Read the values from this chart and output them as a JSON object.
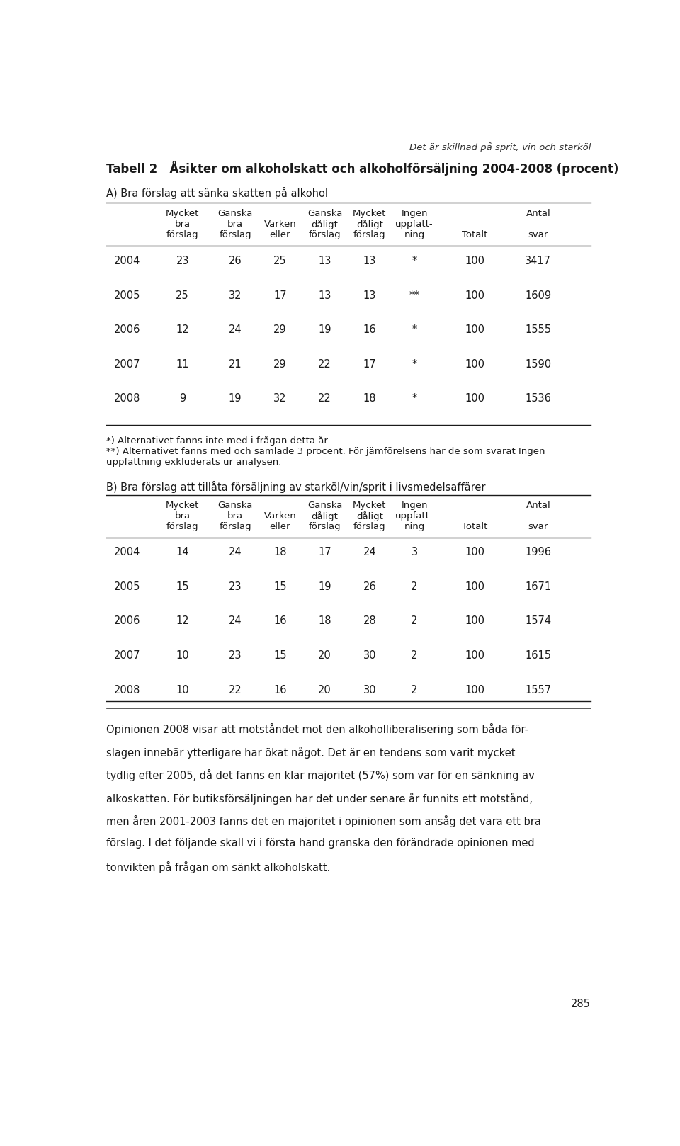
{
  "page_header": "Det är skillnad på sprit, vin och starköl",
  "main_title": "Tabell 2   Åsikter om alkoholskatt och alkoholförsäljning 2004-2008 (procent)",
  "section_a_title": "A) Bra förslag att sänka skatten på alkohol",
  "section_b_title": "B) Bra förslag att tillåta försäljning av starköl/vin/sprit i livsmedelsaffärer",
  "col_headers_line1": [
    "Mycket",
    "Ganska",
    "",
    "Ganska",
    "Mycket",
    "Ingen",
    "",
    "Antal"
  ],
  "col_headers_line2": [
    "bra",
    "bra",
    "Varken",
    "dåligt",
    "dåligt",
    "uppfatt-",
    "",
    ""
  ],
  "col_headers_line3": [
    "förslag",
    "förslag",
    "eller",
    "förslag",
    "förslag",
    "ning",
    "Totalt",
    "svar"
  ],
  "table_a_rows": [
    [
      "2004",
      "23",
      "26",
      "25",
      "13",
      "13",
      "*",
      "100",
      "3417"
    ],
    [
      "2005",
      "25",
      "32",
      "17",
      "13",
      "13",
      "**",
      "100",
      "1609"
    ],
    [
      "2006",
      "12",
      "24",
      "29",
      "19",
      "16",
      "*",
      "100",
      "1555"
    ],
    [
      "2007",
      "11",
      "21",
      "29",
      "22",
      "17",
      "*",
      "100",
      "1590"
    ],
    [
      "2008",
      "9",
      "19",
      "32",
      "22",
      "18",
      "*",
      "100",
      "1536"
    ]
  ],
  "table_b_rows": [
    [
      "2004",
      "14",
      "24",
      "18",
      "17",
      "24",
      "3",
      "100",
      "1996"
    ],
    [
      "2005",
      "15",
      "23",
      "15",
      "19",
      "26",
      "2",
      "100",
      "1671"
    ],
    [
      "2006",
      "12",
      "24",
      "16",
      "18",
      "28",
      "2",
      "100",
      "1574"
    ],
    [
      "2007",
      "10",
      "23",
      "15",
      "20",
      "30",
      "2",
      "100",
      "1615"
    ],
    [
      "2008",
      "10",
      "22",
      "16",
      "20",
      "30",
      "2",
      "100",
      "1557"
    ]
  ],
  "footnote1": "*) Alternativet fanns inte med i frågan detta år",
  "footnote2a": "**) Alternativet fanns med och samlade 3 procent. För jämförelsens har de som svarat Ingen",
  "footnote2b": "uppfattning exkluderats ur analysen.",
  "body_lines": [
    "Opinionen 2008 visar att motståndet mot den alkoholliberalisering som båda för-",
    "slagen innebär ytterligare har ökat något. Det är en tendens som varit mycket",
    "tydlig efter 2005, då det fanns en klar majoritet (57%) som var för en sänkning av",
    "alkoskatten. För butiksförsäljningen har det under senare år funnits ett motstånd,",
    "men åren 2001-2003 fanns det en majoritet i opinionen som ansåg det vara ett bra",
    "förslag. I det följande skall vi i första hand granska den förändrade opinionen med",
    "tonvikten på frågan om sänkt alkoholskatt."
  ],
  "page_number": "285",
  "bg_color": "#ffffff"
}
